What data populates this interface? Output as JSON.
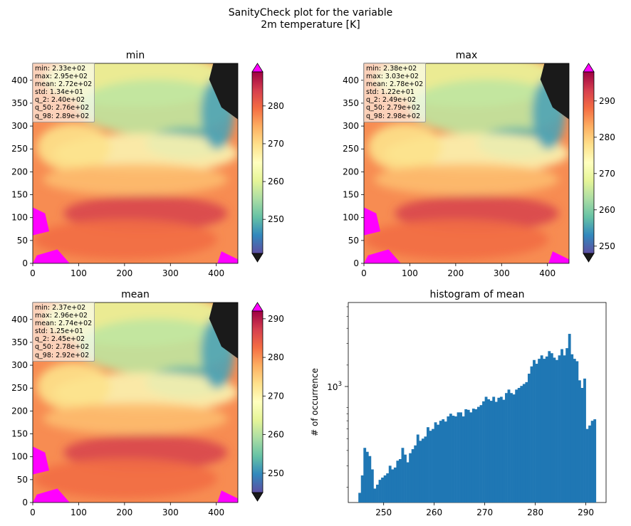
{
  "figure": {
    "title_line1": "SanityCheck plot for the variable",
    "title_line2": "2m temperature [K]"
  },
  "colors": {
    "under_color": "#1a1a1a",
    "over_color": "#ff00ff",
    "histogram_color": "#1f77b4",
    "colormap": "Spectral_r"
  },
  "panels": [
    {
      "title": "min",
      "x_ticks": [
        "0",
        "100",
        "200",
        "300",
        "400"
      ],
      "y_ticks": [
        "0",
        "50",
        "100",
        "150",
        "200",
        "250",
        "300",
        "350",
        "400"
      ],
      "colorbar_ticks": [
        "250",
        "260",
        "270",
        "280"
      ],
      "colorbar_range": [
        241,
        289
      ],
      "stats": [
        "min: 2.33e+02",
        "max: 2.95e+02",
        "mean: 2.72e+02",
        "std: 1.34e+01",
        "q_2: 2.40e+02",
        "q_50: 2.76e+02",
        "q_98: 2.89e+02"
      ]
    },
    {
      "title": "max",
      "x_ticks": [
        "0",
        "100",
        "200",
        "300",
        "400"
      ],
      "y_ticks": [
        "0",
        "50",
        "100",
        "150",
        "200",
        "250",
        "300",
        "350",
        "400"
      ],
      "colorbar_ticks": [
        "250",
        "260",
        "270",
        "280",
        "290"
      ],
      "colorbar_range": [
        248,
        298
      ],
      "stats": [
        "min: 2.38e+02",
        "max: 3.03e+02",
        "mean: 2.78e+02",
        "std: 1.22e+01",
        "q_2: 2.49e+02",
        "q_50: 2.79e+02",
        "q_98: 2.98e+02"
      ]
    },
    {
      "title": "mean",
      "x_ticks": [
        "0",
        "100",
        "200",
        "300",
        "400"
      ],
      "y_ticks": [
        "0",
        "50",
        "100",
        "150",
        "200",
        "250",
        "300",
        "350",
        "400"
      ],
      "colorbar_ticks": [
        "250",
        "260",
        "270",
        "280",
        "290"
      ],
      "colorbar_range": [
        245,
        292
      ],
      "stats": [
        "min: 2.37e+02",
        "max: 2.96e+02",
        "mean: 2.74e+02",
        "std: 1.25e+01",
        "q_2: 2.45e+02",
        "q_50: 2.78e+02",
        "q_98: 2.92e+02"
      ]
    }
  ],
  "chart_data": {
    "type": "bar",
    "title": "histogram of mean",
    "xlabel": "",
    "ylabel": "# of occurrence",
    "y_scale": "log",
    "y_tick_label": "10",
    "y_tick_exponent": "3",
    "x_ticks": [
      "250",
      "260",
      "270",
      "280",
      "290"
    ],
    "xlim": [
      243,
      294
    ],
    "ylim": [
      150,
      6500
    ],
    "x": [
      245,
      245.5,
      246,
      246.5,
      247,
      247.5,
      248,
      248.5,
      249,
      249.5,
      250,
      250.5,
      251,
      251.5,
      252,
      252.5,
      253,
      253.5,
      254,
      254.5,
      255,
      255.5,
      256,
      256.5,
      257,
      257.5,
      258,
      258.5,
      259,
      259.5,
      260,
      260.5,
      261,
      261.5,
      262,
      262.5,
      263,
      263.5,
      264,
      264.5,
      265,
      265.5,
      266,
      266.5,
      267,
      267.5,
      268,
      268.5,
      269,
      269.5,
      270,
      270.5,
      271,
      271.5,
      272,
      272.5,
      273,
      273.5,
      274,
      274.5,
      275,
      275.5,
      276,
      276.5,
      277,
      277.5,
      278,
      278.5,
      279,
      279.5,
      280,
      280.5,
      281,
      281.5,
      282,
      282.5,
      283,
      283.5,
      284,
      284.5,
      285,
      285.5,
      286,
      286.5,
      287,
      287.5,
      288,
      288.5,
      289,
      289.5,
      290,
      290.5,
      291,
      291.5
    ],
    "values": [
      180,
      250,
      420,
      390,
      360,
      280,
      195,
      210,
      230,
      240,
      250,
      260,
      300,
      280,
      290,
      330,
      340,
      420,
      370,
      320,
      380,
      410,
      440,
      540,
      480,
      500,
      520,
      620,
      580,
      600,
      680,
      650,
      700,
      720,
      690,
      760,
      800,
      770,
      760,
      820,
      820,
      760,
      870,
      860,
      820,
      880,
      870,
      910,
      940,
      1010,
      1100,
      1050,
      1020,
      1100,
      1000,
      1080,
      1100,
      1040,
      1180,
      1260,
      1180,
      1150,
      1260,
      1300,
      1350,
      1400,
      1450,
      1700,
      1950,
      2200,
      2050,
      2250,
      2400,
      2250,
      2350,
      2600,
      2500,
      2300,
      2200,
      2400,
      2700,
      2400,
      2750,
      3600,
      2450,
      2250,
      2150,
      1500,
      1300,
      1550,
      600,
      640,
      700,
      720
    ],
    "bin_width": 0.5
  }
}
